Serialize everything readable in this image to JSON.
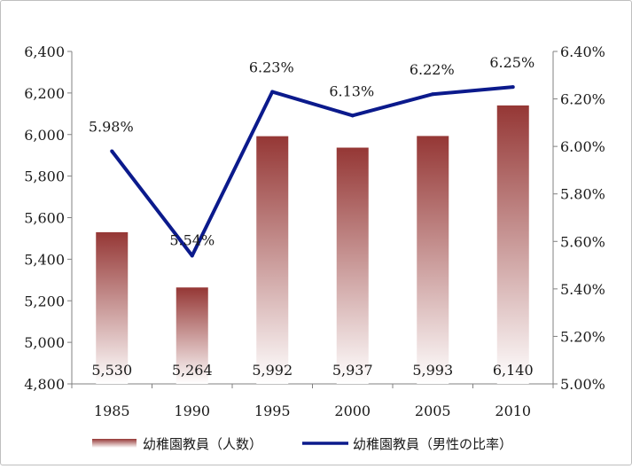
{
  "chart_data": {
    "type": "bar+line",
    "categories": [
      "1985",
      "1990",
      "1995",
      "2000",
      "2005",
      "2010"
    ],
    "series": [
      {
        "name": "幼稚園教員（人数）",
        "type": "bar",
        "axis": "left",
        "values": [
          5530,
          5264,
          5992,
          5937,
          5993,
          6140
        ],
        "labels": [
          "5,530",
          "5,264",
          "5,992",
          "5,937",
          "5,993",
          "6,140"
        ]
      },
      {
        "name": "幼稚園教員（男性の比率）",
        "type": "line",
        "axis": "right",
        "values": [
          5.98,
          5.54,
          6.23,
          6.13,
          6.22,
          6.25
        ],
        "labels": [
          "5.98%",
          "5.54%",
          "6.23%",
          "6.13%",
          "6.22%",
          "6.25%"
        ]
      }
    ],
    "y_left": {
      "range": [
        4800,
        6400
      ],
      "ticks": [
        4800,
        5000,
        5200,
        5400,
        5600,
        5800,
        6000,
        6200,
        6400
      ],
      "tick_labels": [
        "4,800",
        "5,000",
        "5,200",
        "5,400",
        "5,600",
        "5,800",
        "6,000",
        "6,200",
        "6,400"
      ]
    },
    "y_right": {
      "range": [
        5.0,
        6.4
      ],
      "ticks": [
        5.0,
        5.2,
        5.4,
        5.6,
        5.8,
        6.0,
        6.2,
        6.4
      ],
      "tick_labels": [
        "5.00%",
        "5.20%",
        "5.40%",
        "5.60%",
        "5.80%",
        "6.00%",
        "6.20%",
        "6.40%"
      ]
    },
    "grid": false,
    "legend_position": "bottom",
    "colors": {
      "bar_top": "#953735",
      "bar_bottom": "#ffffff",
      "line": "#0b1a8c",
      "axis": "#808080"
    }
  }
}
